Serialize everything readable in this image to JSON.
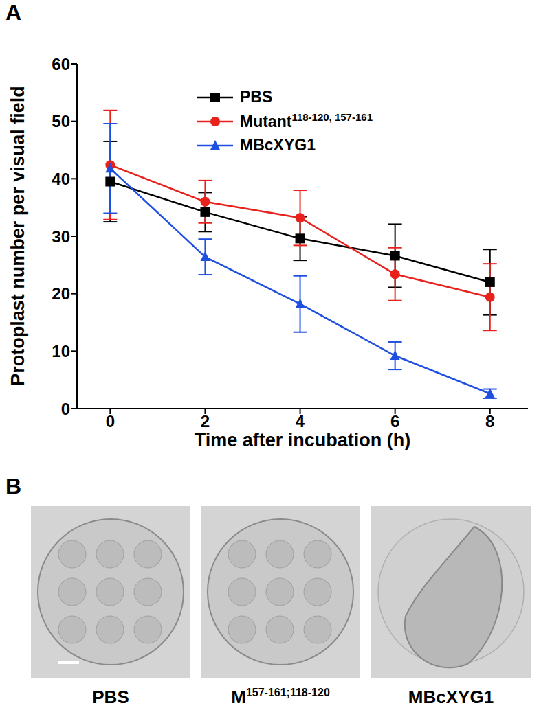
{
  "chart_data": {
    "type": "line",
    "panel_label": "A",
    "x_label": "Time after incubation (h)",
    "y_label": "Protoplast number per visual field",
    "x": [
      0,
      2,
      4,
      6,
      8
    ],
    "xlim": [
      -0.7,
      8.8
    ],
    "xticks": [
      0,
      2,
      4,
      6,
      8
    ],
    "ylim": [
      0,
      60
    ],
    "yticks": [
      0,
      10,
      20,
      30,
      40,
      50,
      60
    ],
    "legend": "top-left",
    "series": [
      {
        "name": "PBS",
        "color": "#000000",
        "marker": "square",
        "values": [
          39.5,
          34.2,
          29.6,
          26.6,
          22.0
        ],
        "errors": [
          7.0,
          3.4,
          3.8,
          5.5,
          5.7
        ]
      },
      {
        "name": "Mutant",
        "name_superscript": "118-120, 157-161",
        "color": "#e8211c",
        "marker": "circle",
        "values": [
          42.4,
          36.0,
          33.2,
          23.4,
          19.4
        ],
        "errors": [
          9.5,
          3.7,
          4.8,
          4.6,
          5.8
        ]
      },
      {
        "name": "MBcXYG1",
        "color": "#1f4fe0",
        "marker": "triangle",
        "values": [
          41.8,
          26.4,
          18.2,
          9.2,
          2.6
        ],
        "errors": [
          7.8,
          3.1,
          4.9,
          2.4,
          0.8
        ]
      }
    ]
  },
  "panel_b": {
    "label": "B",
    "images": [
      {
        "caption": "PBS"
      },
      {
        "caption": "M",
        "caption_superscript": "157-161;118-120"
      },
      {
        "caption": "MBcXYG1"
      }
    ]
  }
}
